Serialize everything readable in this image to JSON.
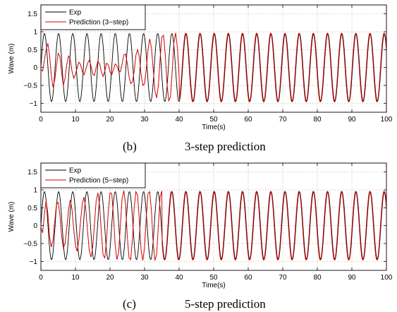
{
  "chart_data": [
    {
      "type": "line",
      "caption_letter": "(b)",
      "caption_text": "3-step prediction",
      "xlabel": "Time(s)",
      "ylabel": "Wave (m)",
      "xlim": [
        0,
        100
      ],
      "ylim": [
        -1.25,
        1.75
      ],
      "xticks": [
        0,
        10,
        20,
        30,
        40,
        50,
        60,
        70,
        80,
        90,
        100
      ],
      "yticks": [
        -1,
        -0.5,
        0,
        0.5,
        1,
        1.5
      ],
      "grid": true,
      "legend_position": "top-left",
      "series": [
        {
          "name": "Exp",
          "color": "#000000",
          "kind": "sine",
          "amplitude": 0.95,
          "period": 4.1,
          "x_range": [
            0,
            100
          ]
        },
        {
          "name": "Prediction (3−step)",
          "color": "#d40000",
          "kind": "points",
          "x": [
            0,
            0.5,
            1,
            1.5,
            2,
            2.5,
            3,
            3.5,
            4,
            4.5,
            5,
            5.5,
            6,
            6.5,
            7,
            7.5,
            8,
            8.5,
            9,
            9.5,
            10,
            10.5,
            11,
            11.5,
            12,
            12.5,
            13,
            13.5,
            14,
            14.5,
            15,
            15.5,
            16,
            16.5,
            17,
            17.5,
            18,
            18.5,
            19,
            19.5,
            20,
            20.5,
            21,
            21.5,
            22,
            22.5,
            23,
            23.5,
            24,
            24.5,
            25,
            25.5,
            26,
            26.5,
            27,
            27.5,
            28,
            28.5,
            29,
            29.5,
            30,
            30.5,
            31,
            31.5,
            32,
            32.5,
            33,
            33.5,
            34,
            34.5,
            35,
            35.5,
            36,
            36.5,
            37,
            37.5,
            38,
            38.5,
            39,
            39.5,
            40
          ],
          "y": [
            -0.05,
            -0.1,
            0.2,
            0.5,
            0.68,
            0.35,
            -0.2,
            -0.55,
            -0.35,
            0.05,
            0.4,
            0.3,
            -0.15,
            -0.5,
            -0.3,
            0.1,
            0.32,
            0.22,
            -0.1,
            -0.3,
            -0.2,
            0.0,
            0.15,
            0.08,
            -0.12,
            -0.2,
            -0.05,
            0.12,
            0.2,
            0.05,
            -0.18,
            -0.22,
            0.0,
            0.18,
            0.1,
            -0.12,
            -0.25,
            -0.1,
            0.12,
            0.08,
            -0.12,
            -0.2,
            -0.06,
            0.1,
            0.05,
            -0.1,
            -0.12,
            0.1,
            0.35,
            0.38,
            0.12,
            -0.25,
            -0.45,
            -0.4,
            -0.1,
            0.35,
            0.5,
            0.3,
            -0.2,
            -0.5,
            -0.45,
            -0.05,
            0.5,
            0.8,
            0.55,
            -0.05,
            -0.65,
            -0.85,
            -0.5,
            0.25,
            0.85,
            0.9,
            0.35,
            -0.45,
            -0.93,
            -0.82,
            -0.1,
            0.7,
            0.97,
            0.55,
            -0.25
          ],
          "sine_after": 40,
          "amplitude": 0.95,
          "period": 4.1
        }
      ]
    },
    {
      "type": "line",
      "caption_letter": "(c)",
      "caption_text": "5-step prediction",
      "xlabel": "Time(s)",
      "ylabel": "Wave (m)",
      "xlim": [
        0,
        100
      ],
      "ylim": [
        -1.25,
        1.75
      ],
      "xticks": [
        0,
        10,
        20,
        30,
        40,
        50,
        60,
        70,
        80,
        90,
        100
      ],
      "yticks": [
        -1,
        -0.5,
        0,
        0.5,
        1,
        1.5
      ],
      "grid": true,
      "legend_position": "top-left",
      "series": [
        {
          "name": "Exp",
          "color": "#000000",
          "kind": "sine",
          "amplitude": 0.95,
          "period": 4.1,
          "x_range": [
            0,
            100
          ]
        },
        {
          "name": "Prediction (5−step)",
          "color": "#d40000",
          "kind": "points",
          "x": [
            0,
            0.5,
            1,
            1.5,
            2,
            2.5,
            3,
            3.5,
            4,
            4.5,
            5,
            5.5,
            6,
            6.5,
            7,
            7.5,
            8,
            8.5,
            9,
            9.5,
            10,
            10.5,
            11,
            11.5,
            12,
            12.5,
            13,
            13.5,
            14,
            14.5,
            15,
            15.5,
            16,
            16.5,
            17,
            17.5,
            18,
            18.5,
            19,
            19.5,
            20,
            20.5,
            21,
            21.5,
            22,
            22.5,
            23,
            23.5,
            24,
            24.5,
            25,
            25.5,
            26,
            26.5,
            27,
            27.5,
            28,
            28.5,
            29,
            29.5,
            30,
            30.5,
            31,
            31.5,
            32,
            32.5,
            33,
            33.5,
            34,
            34.5,
            35
          ],
          "y": [
            -0.05,
            -0.2,
            0.3,
            0.7,
            0.35,
            -0.3,
            -0.6,
            -0.4,
            0.1,
            0.6,
            0.65,
            0.3,
            -0.3,
            -0.62,
            -0.5,
            -0.05,
            0.45,
            0.72,
            0.45,
            -0.1,
            -0.55,
            -0.72,
            -0.4,
            0.15,
            0.62,
            0.8,
            0.45,
            -0.15,
            -0.7,
            -0.88,
            -0.6,
            0.05,
            0.7,
            0.92,
            0.55,
            -0.2,
            -0.82,
            -0.9,
            -0.4,
            0.4,
            0.92,
            0.9,
            0.3,
            -0.55,
            -0.95,
            -0.75,
            0.0,
            0.75,
            0.98,
            0.6,
            -0.3,
            -0.9,
            -0.95,
            -0.35,
            0.5,
            0.95,
            0.85,
            0.15,
            -0.7,
            -0.97,
            -0.6,
            0.25,
            0.9,
            0.95,
            0.4,
            -0.5,
            -0.97,
            -0.8,
            0.0,
            0.8,
            0.97
          ],
          "sine_after": 35,
          "amplitude": 0.95,
          "period": 4.1
        }
      ]
    }
  ]
}
